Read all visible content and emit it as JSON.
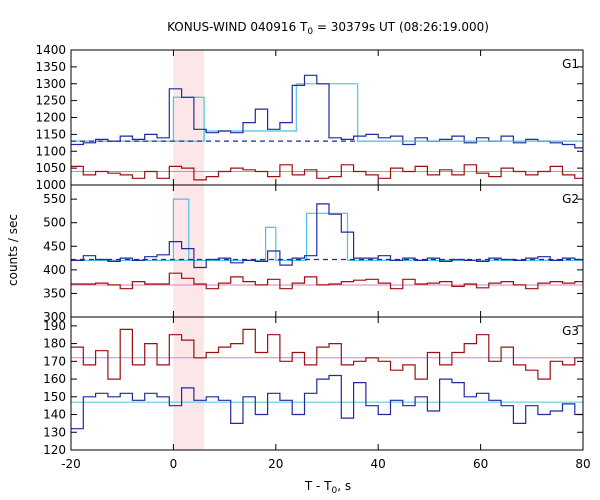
{
  "chart_data": {
    "type": "line",
    "title_main": "KONUS-WIND 040916 T",
    "title_sub": "0",
    "title_rest": " = 30379s UT (08:26:19.000)",
    "xlabel_main": "T - T",
    "xlabel_sub": "0",
    "xlabel_rest": ", s",
    "ylabel": "counts / sec",
    "xlim": [
      -20,
      80
    ],
    "x_ticks": [
      -20,
      0,
      20,
      40,
      60,
      80
    ],
    "x_tick_labels": [
      "-20",
      "0",
      "20",
      "40",
      "60",
      "80"
    ],
    "highlight_interval": [
      0,
      6
    ],
    "colors": {
      "blue": "#1f2a9e",
      "red": "#9b1111",
      "cyan": "#4fc3e0",
      "pink": "#e07fc0",
      "shade": "#fde6e8"
    },
    "bin_edges": [
      -20,
      -17.6,
      -15.2,
      -12.8,
      -10.4,
      -8,
      -5.6,
      -3.2,
      -0.8,
      1.6,
      4,
      6.4,
      8.8,
      11.2,
      13.6,
      16,
      18.4,
      20.8,
      23.2,
      25.6,
      28,
      30.4,
      32.8,
      35.2,
      37.6,
      40,
      42.4,
      44.8,
      47.2,
      49.6,
      52,
      54.4,
      56.8,
      59.2,
      61.6,
      64,
      66.4,
      68.8,
      71.2,
      73.6,
      76,
      78.4,
      80
    ],
    "panels": [
      {
        "label": "G1",
        "ylim": [
          1000,
          1400
        ],
        "y_ticks": [
          1000,
          1050,
          1100,
          1150,
          1200,
          1250,
          1300,
          1350,
          1400
        ],
        "y_tick_labels": [
          "1000",
          "1050",
          "1100",
          "1150",
          "1200",
          "1250",
          "1300",
          "1350",
          "1400"
        ],
        "hist_main": [
          1120,
          1125,
          1135,
          1130,
          1145,
          1135,
          1150,
          1140,
          1285,
          1260,
          1165,
          1155,
          1160,
          1155,
          1185,
          1225,
          1165,
          1185,
          1295,
          1325,
          1300,
          1140,
          1135,
          1145,
          1150,
          1140,
          1145,
          1120,
          1140,
          1130,
          1135,
          1145,
          1125,
          1140,
          1130,
          1145,
          1125,
          1135,
          1130,
          1125,
          1120,
          1110
        ],
        "hist_other": [
          1055,
          1030,
          1040,
          1035,
          1030,
          1020,
          1040,
          1020,
          1055,
          1050,
          1015,
          1025,
          1040,
          1050,
          1045,
          1040,
          1025,
          1060,
          1030,
          1045,
          1020,
          1025,
          1060,
          1040,
          1030,
          1020,
          1050,
          1040,
          1055,
          1030,
          1045,
          1030,
          1060,
          1035,
          1025,
          1050,
          1040,
          1030,
          1040,
          1055,
          1030,
          1020
        ],
        "model_steps": [
          {
            "x0": -20,
            "x1": 6,
            "y": 1130
          },
          {
            "x0": 6,
            "x1": 24,
            "y": 1160
          },
          {
            "x0": 24,
            "x1": 36,
            "y": 1300
          },
          {
            "x0": 36,
            "x1": 80,
            "y": 1130
          }
        ],
        "model_spike": {
          "x0": 0,
          "x1": 6,
          "y": 1260
        },
        "bg_dashed": {
          "x0": -20,
          "x1": 36,
          "y": 1130
        },
        "bg_solid": {
          "x0": 36,
          "x1": 80,
          "y": 1130
        },
        "bg_other": 1040
      },
      {
        "label": "G2",
        "ylim": [
          300,
          580
        ],
        "y_ticks": [
          300,
          350,
          400,
          450,
          500,
          550
        ],
        "y_tick_labels": [
          "300",
          "350",
          "400",
          "450",
          "500",
          "550"
        ],
        "hist_main": [
          420,
          430,
          422,
          418,
          425,
          420,
          428,
          432,
          460,
          445,
          405,
          422,
          425,
          415,
          420,
          418,
          440,
          410,
          425,
          430,
          540,
          518,
          480,
          425,
          425,
          430,
          420,
          425,
          420,
          425,
          418,
          422,
          420,
          418,
          425,
          422,
          420,
          425,
          428,
          420,
          425,
          422
        ],
        "hist_other": [
          370,
          370,
          372,
          368,
          360,
          375,
          370,
          370,
          393,
          382,
          370,
          360,
          372,
          385,
          375,
          368,
          380,
          360,
          372,
          385,
          368,
          370,
          375,
          378,
          380,
          372,
          360,
          380,
          370,
          372,
          375,
          365,
          370,
          362,
          372,
          375,
          368,
          360,
          372,
          375,
          372,
          375
        ],
        "model_steps": [
          {
            "x0": -20,
            "x1": 4,
            "y": 420
          },
          {
            "x0": 4,
            "x1": 18,
            "y": 420
          },
          {
            "x0": 18,
            "x1": 20,
            "y": 490
          },
          {
            "x0": 20,
            "x1": 26,
            "y": 420
          },
          {
            "x0": 26,
            "x1": 34,
            "y": 520
          },
          {
            "x0": 34,
            "x1": 80,
            "y": 420
          }
        ],
        "model_spike": {
          "x0": 0,
          "x1": 3,
          "y": 550
        },
        "bg_dashed": {
          "x0": -20,
          "x1": 80,
          "y": 422
        },
        "bg_other": 368
      },
      {
        "label": "G3",
        "ylim": [
          120,
          195
        ],
        "y_ticks": [
          120,
          130,
          140,
          150,
          160,
          170,
          180,
          190
        ],
        "y_tick_labels": [
          "120",
          "130",
          "140",
          "150",
          "160",
          "170",
          "180",
          "190"
        ],
        "hist_main": [
          132,
          150,
          152,
          150,
          152,
          148,
          152,
          150,
          145,
          155,
          148,
          150,
          148,
          135,
          150,
          140,
          152,
          148,
          140,
          152,
          160,
          162,
          138,
          158,
          145,
          140,
          148,
          145,
          150,
          142,
          160,
          158,
          150,
          152,
          148,
          145,
          135,
          145,
          140,
          142,
          146,
          140
        ],
        "hist_other": [
          178,
          168,
          176,
          160,
          188,
          168,
          180,
          168,
          185,
          182,
          172,
          175,
          178,
          180,
          188,
          175,
          185,
          170,
          175,
          168,
          178,
          180,
          168,
          170,
          172,
          170,
          165,
          168,
          160,
          175,
          168,
          175,
          180,
          185,
          170,
          178,
          168,
          165,
          160,
          170,
          168,
          172
        ],
        "bg_main": 147,
        "bg_other": 172
      }
    ]
  }
}
